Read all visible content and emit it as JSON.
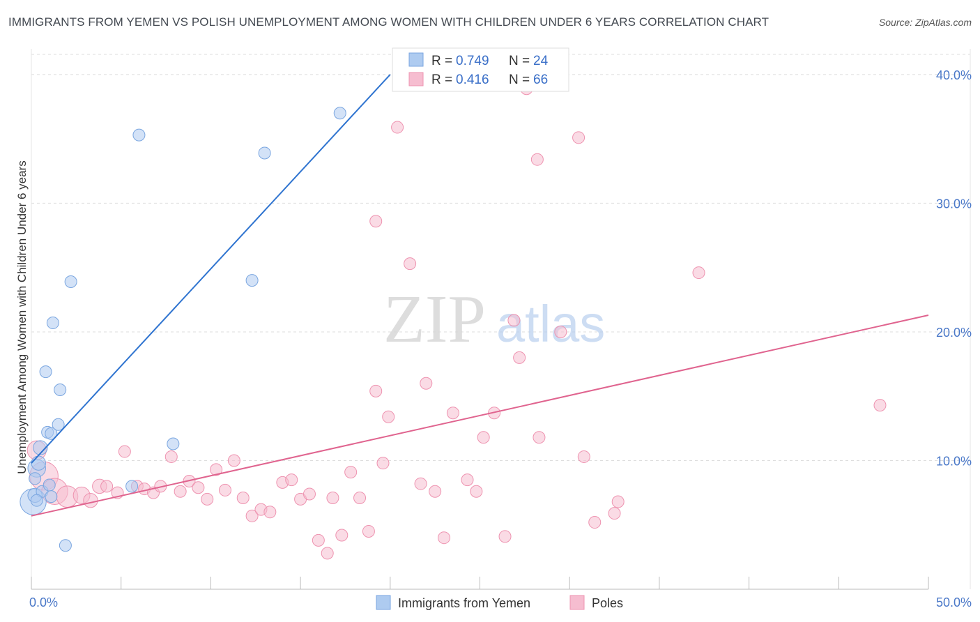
{
  "title": "IMMIGRANTS FROM YEMEN VS POLISH UNEMPLOYMENT AMONG WOMEN WITH CHILDREN UNDER 6 YEARS CORRELATION CHART",
  "source": "Source: ZipAtlas.com",
  "watermark": {
    "zip": "ZIP",
    "atlas": "atlas"
  },
  "colors": {
    "blue_fill": "#aecbf0",
    "blue_stroke": "#7aa6e0",
    "blue_line": "#2f74d0",
    "pink_fill": "#f6bdd0",
    "pink_stroke": "#ee93b0",
    "pink_line": "#e0648f",
    "grid": "#dddddd",
    "tick_text": "#4a78c8"
  },
  "legend": {
    "rows": [
      {
        "r_label": "R = ",
        "r_value": "0.749",
        "n_label": "N = ",
        "n_value": "24"
      },
      {
        "r_label": "R = ",
        "r_value": "0.416",
        "n_label": "N = ",
        "n_value": "66"
      }
    ]
  },
  "chart_data": {
    "type": "scatter",
    "title": "IMMIGRANTS FROM YEMEN VS POLISH UNEMPLOYMENT AMONG WOMEN WITH CHILDREN UNDER 6 YEARS CORRELATION CHART",
    "xlabel": "",
    "ylabel": "Unemployment Among Women with Children Under 6 years",
    "xlim": [
      0,
      50
    ],
    "ylim": [
      0,
      42
    ],
    "x_tick_labels": [
      "0.0%",
      "50.0%"
    ],
    "y_ticks": [
      10,
      20,
      30,
      40
    ],
    "y_tick_labels": [
      "10.0%",
      "20.0%",
      "30.0%",
      "40.0%"
    ],
    "grid": true,
    "series": [
      {
        "name": "Immigrants from Yemen",
        "R": 0.749,
        "N": 24,
        "trend": {
          "x": [
            0,
            20
          ],
          "y": [
            9.8,
            40.0
          ]
        },
        "points": [
          {
            "x": 0.1,
            "y": 6.8,
            "s": 2.2
          },
          {
            "x": 0.2,
            "y": 7.3,
            "s": 1.2
          },
          {
            "x": 0.3,
            "y": 9.4,
            "s": 1.5
          },
          {
            "x": 0.4,
            "y": 9.8,
            "s": 1.2
          },
          {
            "x": 0.5,
            "y": 11.0,
            "s": 1.2
          },
          {
            "x": 0.6,
            "y": 7.6,
            "s": 1.0
          },
          {
            "x": 0.8,
            "y": 16.9,
            "s": 1.0
          },
          {
            "x": 0.9,
            "y": 12.2,
            "s": 1.0
          },
          {
            "x": 1.0,
            "y": 8.1,
            "s": 1.0
          },
          {
            "x": 1.1,
            "y": 12.1,
            "s": 1.0
          },
          {
            "x": 1.1,
            "y": 7.2,
            "s": 1.0
          },
          {
            "x": 1.2,
            "y": 20.7,
            "s": 1.0
          },
          {
            "x": 1.5,
            "y": 12.8,
            "s": 1.0
          },
          {
            "x": 1.6,
            "y": 15.5,
            "s": 1.0
          },
          {
            "x": 1.9,
            "y": 3.4,
            "s": 1.0
          },
          {
            "x": 2.2,
            "y": 23.9,
            "s": 1.0
          },
          {
            "x": 5.6,
            "y": 8.0,
            "s": 1.0
          },
          {
            "x": 6.0,
            "y": 35.3,
            "s": 1.0
          },
          {
            "x": 7.9,
            "y": 11.3,
            "s": 1.0
          },
          {
            "x": 12.3,
            "y": 24.0,
            "s": 1.0
          },
          {
            "x": 13.0,
            "y": 33.9,
            "s": 1.0
          },
          {
            "x": 17.2,
            "y": 37.0,
            "s": 1.0
          },
          {
            "x": 0.2,
            "y": 8.6,
            "s": 1.0
          },
          {
            "x": 0.3,
            "y": 6.9,
            "s": 1.0
          }
        ]
      },
      {
        "name": "Poles",
        "R": 0.416,
        "N": 66,
        "trend": {
          "x": [
            0,
            50
          ],
          "y": [
            5.7,
            21.3
          ]
        },
        "points": [
          {
            "x": 0.3,
            "y": 10.8,
            "s": 1.6
          },
          {
            "x": 0.7,
            "y": 8.8,
            "s": 2.4
          },
          {
            "x": 1.3,
            "y": 7.6,
            "s": 2.2
          },
          {
            "x": 2.0,
            "y": 7.2,
            "s": 1.8
          },
          {
            "x": 2.8,
            "y": 7.3,
            "s": 1.4
          },
          {
            "x": 3.3,
            "y": 6.9,
            "s": 1.2
          },
          {
            "x": 3.8,
            "y": 8.0,
            "s": 1.2
          },
          {
            "x": 4.2,
            "y": 8.0,
            "s": 1.0
          },
          {
            "x": 4.8,
            "y": 7.5,
            "s": 1.0
          },
          {
            "x": 5.2,
            "y": 10.7,
            "s": 1.0
          },
          {
            "x": 5.9,
            "y": 8.0,
            "s": 1.0
          },
          {
            "x": 6.3,
            "y": 7.8,
            "s": 1.0
          },
          {
            "x": 6.8,
            "y": 7.5,
            "s": 1.0
          },
          {
            "x": 7.2,
            "y": 8.0,
            "s": 1.0
          },
          {
            "x": 7.8,
            "y": 10.3,
            "s": 1.0
          },
          {
            "x": 8.3,
            "y": 7.6,
            "s": 1.0
          },
          {
            "x": 8.8,
            "y": 8.4,
            "s": 1.0
          },
          {
            "x": 9.3,
            "y": 7.9,
            "s": 1.0
          },
          {
            "x": 9.8,
            "y": 7.0,
            "s": 1.0
          },
          {
            "x": 10.3,
            "y": 9.3,
            "s": 1.0
          },
          {
            "x": 10.8,
            "y": 7.7,
            "s": 1.0
          },
          {
            "x": 11.3,
            "y": 10.0,
            "s": 1.0
          },
          {
            "x": 11.8,
            "y": 7.1,
            "s": 1.0
          },
          {
            "x": 12.3,
            "y": 5.7,
            "s": 1.0
          },
          {
            "x": 12.8,
            "y": 6.2,
            "s": 1.0
          },
          {
            "x": 13.3,
            "y": 6.0,
            "s": 1.0
          },
          {
            "x": 14.0,
            "y": 8.3,
            "s": 1.0
          },
          {
            "x": 14.5,
            "y": 8.5,
            "s": 1.0
          },
          {
            "x": 15.0,
            "y": 7.0,
            "s": 1.0
          },
          {
            "x": 15.5,
            "y": 7.4,
            "s": 1.0
          },
          {
            "x": 16.0,
            "y": 3.8,
            "s": 1.0
          },
          {
            "x": 16.5,
            "y": 2.8,
            "s": 1.0
          },
          {
            "x": 16.8,
            "y": 7.1,
            "s": 1.0
          },
          {
            "x": 17.3,
            "y": 4.2,
            "s": 1.0
          },
          {
            "x": 17.8,
            "y": 9.1,
            "s": 1.0
          },
          {
            "x": 18.3,
            "y": 7.1,
            "s": 1.0
          },
          {
            "x": 18.8,
            "y": 4.5,
            "s": 1.0
          },
          {
            "x": 19.2,
            "y": 15.4,
            "s": 1.0
          },
          {
            "x": 19.2,
            "y": 28.6,
            "s": 1.0
          },
          {
            "x": 19.6,
            "y": 9.8,
            "s": 1.0
          },
          {
            "x": 19.9,
            "y": 13.4,
            "s": 1.0
          },
          {
            "x": 20.4,
            "y": 35.9,
            "s": 1.0
          },
          {
            "x": 21.1,
            "y": 25.3,
            "s": 1.0
          },
          {
            "x": 21.7,
            "y": 8.2,
            "s": 1.0
          },
          {
            "x": 22.0,
            "y": 16.0,
            "s": 1.0
          },
          {
            "x": 22.5,
            "y": 7.6,
            "s": 1.0
          },
          {
            "x": 23.0,
            "y": 4.0,
            "s": 1.0
          },
          {
            "x": 23.5,
            "y": 13.7,
            "s": 1.0
          },
          {
            "x": 24.3,
            "y": 8.5,
            "s": 1.0
          },
          {
            "x": 24.8,
            "y": 7.6,
            "s": 1.0
          },
          {
            "x": 25.2,
            "y": 11.8,
            "s": 1.0
          },
          {
            "x": 25.8,
            "y": 13.7,
            "s": 1.0
          },
          {
            "x": 26.4,
            "y": 4.1,
            "s": 1.0
          },
          {
            "x": 26.9,
            "y": 20.9,
            "s": 1.0
          },
          {
            "x": 27.2,
            "y": 18.0,
            "s": 1.0
          },
          {
            "x": 27.6,
            "y": 38.9,
            "s": 1.0
          },
          {
            "x": 28.2,
            "y": 33.4,
            "s": 1.0
          },
          {
            "x": 28.3,
            "y": 11.8,
            "s": 1.0
          },
          {
            "x": 29.5,
            "y": 20.0,
            "s": 1.0
          },
          {
            "x": 30.5,
            "y": 35.1,
            "s": 1.0
          },
          {
            "x": 30.8,
            "y": 10.3,
            "s": 1.0
          },
          {
            "x": 31.4,
            "y": 5.2,
            "s": 1.0
          },
          {
            "x": 32.5,
            "y": 5.9,
            "s": 1.0
          },
          {
            "x": 32.7,
            "y": 6.8,
            "s": 1.0
          },
          {
            "x": 37.2,
            "y": 24.6,
            "s": 1.0
          },
          {
            "x": 47.3,
            "y": 14.3,
            "s": 1.0
          }
        ]
      }
    ]
  }
}
